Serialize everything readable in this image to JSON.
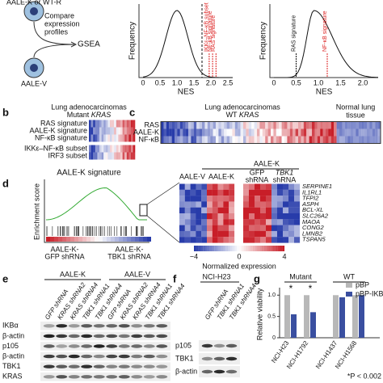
{
  "a": {
    "top_cell": "AALE-K or WT-R",
    "compare": [
      "Compare",
      "expression",
      "profiles"
    ],
    "gsea": "GSEA",
    "bottom_cell": "AALE-V",
    "plot1": {
      "ylabel": "Frequency",
      "xlabel": "NES",
      "xticks": [
        "0",
        "0.5",
        "1.0",
        "1.5",
        "2.0",
        "2.5"
      ],
      "markers": [
        "IKKε–NF-κB subset",
        "NF-κB signature",
        "RAS signature"
      ]
    },
    "plot2": {
      "ylabel": "Frequency",
      "xlabel": "NES",
      "xticks": [
        "0",
        "0.5",
        "1.0",
        "1.5",
        "2.0"
      ],
      "markers": [
        "RAS signature",
        "NF-κB signature"
      ]
    }
  },
  "b": {
    "label": "b",
    "title": "Lung adenocarcinomas",
    "subtitle": [
      "Mutant ",
      "KRAS"
    ],
    "rows": [
      "RAS signature",
      "AALE-K signature",
      "NF-κB signature",
      "IKKε–NF-κB subset",
      "IRF3 subset"
    ]
  },
  "c": {
    "label": "c",
    "title": "Lung adenocarcinomas",
    "subtitle": [
      "WT ",
      "KRAS"
    ],
    "normal": [
      "Normal lung",
      "tissue"
    ],
    "rows": [
      "RAS",
      "AALE-K",
      "NF-κB"
    ]
  },
  "d": {
    "label": "d",
    "title": "AALE-K signature",
    "ylabel": "Enrichment score",
    "left": [
      "AALE-K-",
      "GFP shRNA"
    ],
    "right": [
      "AALE-K-",
      "TBK1 shRNA"
    ],
    "heat_title": "AALE-K",
    "cols": [
      "AALE-V",
      "AALE-K"
    ],
    "cols2": [
      [
        "GFP",
        "shRNA"
      ],
      [
        "TBK1",
        "shRNA"
      ]
    ],
    "genes": [
      "SERPINE1",
      "IL1RL1",
      "TFPI2",
      "ASPH",
      "BCL-XL",
      "SLC26A2",
      "MAOA",
      "CONG2",
      "LMNB2",
      "TSPAN5"
    ],
    "scale": [
      "−4",
      "0",
      "4"
    ],
    "scale_label": "Normalized expression"
  },
  "e": {
    "label": "e",
    "groups": [
      "AALE-K",
      "AALE-V"
    ],
    "lanes": [
      "GFP shRNA",
      "KRAS shRNA2",
      "KRAS shRNA4",
      "TBK1 shRNA1",
      "TBK1 shRNA4",
      "GFP shRNA",
      "KRAS shRNA2",
      "KRAS shRNA4",
      "TBK1 shRNA1",
      "TBK1 shRNA4"
    ],
    "rows": [
      "IKBα",
      "β-actin",
      "p105",
      "β-actin",
      "TBK1",
      "KRAS"
    ]
  },
  "f": {
    "label": "f",
    "title": "NCI-H23",
    "lanes": [
      "GFP shRNA",
      "TBK1 shRNA1",
      "TBK1 shRNA4"
    ],
    "rows": [
      "p105",
      "TBK1",
      "β-actin"
    ]
  },
  "g": {
    "label": "g",
    "groups": [
      "Mutant",
      "WT"
    ],
    "ylabel": "Relative viability",
    "cells": [
      "NCI-H23",
      "NCI-H1792",
      "NCI-H1437",
      "NCI-H1568"
    ],
    "series": [
      {
        "name": "pBP",
        "color": "#b8b8b8",
        "values": [
          1,
          1,
          1,
          1
        ]
      },
      {
        "name": "pBP-IKB-SR",
        "color": "#3a4fa0",
        "values": [
          0.55,
          0.6,
          0.95,
          1
        ]
      }
    ],
    "ylim": [
      0,
      1.1
    ],
    "yticks": [
      0,
      0.5,
      {
        "value": 1,
        "label": "1.0"
      }
    ],
    "stars": [
      "*",
      "*"
    ],
    "note": "*P < 0.002"
  }
}
